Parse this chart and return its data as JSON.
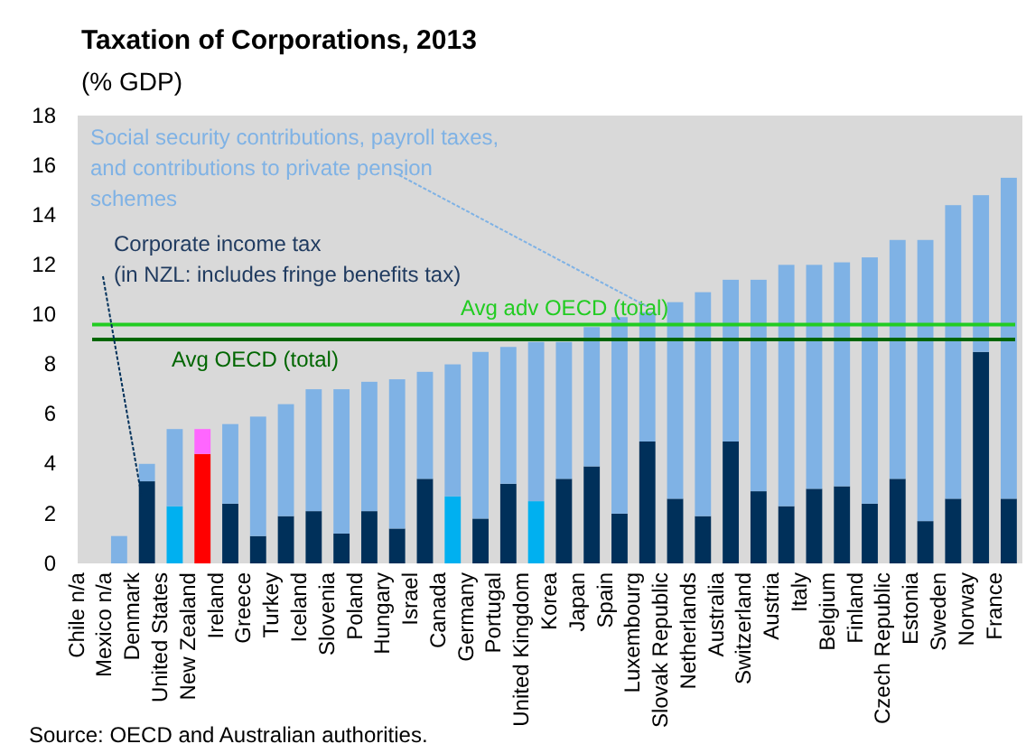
{
  "chart_data": {
    "type": "bar",
    "stacked": true,
    "title": "Taxation of Corporations, 2013",
    "subtitle": "(% GDP)",
    "categories": [
      "Chile n/a",
      "Mexico n/a",
      "Denmark",
      "United States",
      "New Zealand",
      "Ireland",
      "Greece",
      "Turkey",
      "Iceland",
      "Slovenia",
      "Poland",
      "Hungary",
      "Israel",
      "Canada",
      "Germany",
      "Portugal",
      "United Kingdom",
      "Korea",
      "Japan",
      "Spain",
      "Luxembourg",
      "Slovak Republic",
      "Netherlands",
      "Australia",
      "Switzerland",
      "Austria",
      "Italy",
      "Belgium",
      "Finland",
      "Czech Republic",
      "Estonia",
      "Sweden",
      "Norway",
      "France"
    ],
    "series": [
      {
        "name": "Corporate income tax (in NZL: includes fringe benefits tax)",
        "color": "#00305a",
        "colors": [
          "#00305a",
          "#00305a",
          "#00305a",
          "#00b0f0",
          "#ff0000",
          "#00305a",
          "#00305a",
          "#00305a",
          "#00305a",
          "#00305a",
          "#00305a",
          "#00305a",
          "#00305a",
          "#00b0f0",
          "#00305a",
          "#00305a",
          "#00b0f0",
          "#00305a",
          "#00305a",
          "#00305a",
          "#00305a",
          "#00305a",
          "#00305a",
          "#00305a",
          "#00305a",
          "#00305a",
          "#00305a",
          "#00305a",
          "#00305a",
          "#00305a",
          "#00305a",
          "#00305a",
          "#00305a",
          "#00305a"
        ],
        "values": [
          null,
          null,
          3.3,
          2.3,
          4.4,
          2.4,
          1.1,
          1.9,
          2.1,
          1.2,
          2.1,
          1.4,
          3.4,
          2.7,
          1.8,
          3.2,
          2.5,
          3.4,
          3.9,
          2.0,
          4.9,
          2.6,
          1.9,
          4.9,
          2.9,
          2.3,
          3.0,
          3.1,
          2.4,
          3.4,
          1.7,
          2.6,
          8.5,
          2.6
        ]
      },
      {
        "name": "Social security contributions, payroll taxes, and contributions to  private pension schemes",
        "color": "#7fb2e5",
        "colors": [
          "#7fb2e5",
          "#7fb2e5",
          "#7fb2e5",
          "#7fb2e5",
          "#ff66ff",
          "#7fb2e5",
          "#7fb2e5",
          "#7fb2e5",
          "#7fb2e5",
          "#7fb2e5",
          "#7fb2e5",
          "#7fb2e5",
          "#7fb2e5",
          "#7fb2e5",
          "#7fb2e5",
          "#7fb2e5",
          "#7fb2e5",
          "#7fb2e5",
          "#7fb2e5",
          "#7fb2e5",
          "#7fb2e5",
          "#7fb2e5",
          "#7fb2e5",
          "#7fb2e5",
          "#7fb2e5",
          "#7fb2e5",
          "#7fb2e5",
          "#7fb2e5",
          "#7fb2e5",
          "#7fb2e5",
          "#7fb2e5",
          "#7fb2e5",
          "#7fb2e5",
          "#7fb2e5"
        ],
        "values": [
          null,
          1.1,
          0.7,
          3.1,
          1.0,
          3.2,
          4.8,
          4.5,
          4.9,
          5.8,
          5.2,
          6.0,
          4.3,
          5.3,
          6.7,
          5.5,
          6.4,
          5.5,
          5.6,
          7.9,
          5.2,
          7.9,
          9.0,
          6.5,
          8.5,
          9.7,
          9.0,
          9.0,
          9.9,
          9.6,
          11.3,
          11.8,
          6.3,
          12.9
        ]
      }
    ],
    "ylim": [
      0,
      18
    ],
    "yticks": [
      0,
      2,
      4,
      6,
      8,
      10,
      12,
      14,
      16,
      18
    ],
    "ref_lines": [
      {
        "axis": "y",
        "value": 9.6,
        "label": "Avg adv OECD (total)",
        "color": "#22cc22"
      },
      {
        "axis": "y",
        "value": 9.0,
        "label": "Avg OECD (total)",
        "color": "#006600"
      }
    ],
    "annotations": [
      "Source: OECD and Australian authorities."
    ],
    "grid": false
  }
}
